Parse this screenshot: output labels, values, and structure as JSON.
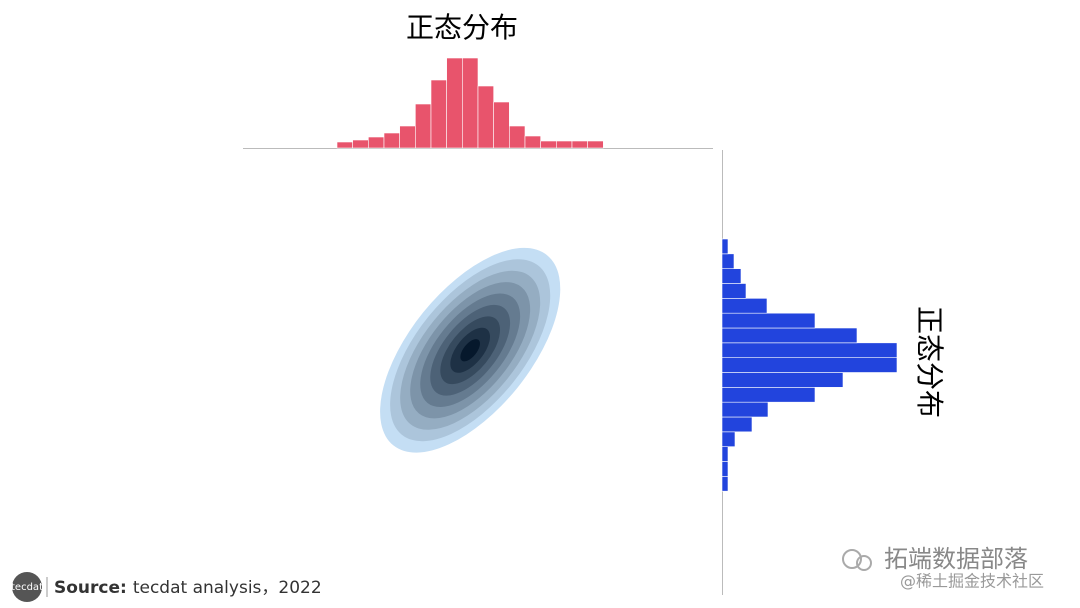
{
  "chart_data": [
    {
      "type": "histogram",
      "title": "正态分布",
      "color": "#e8546c",
      "bins": [
        -1.8,
        -1.6,
        -1.4,
        -1.2,
        -1.0,
        -0.8,
        -0.6,
        -0.4,
        -0.2,
        0.0,
        0.2,
        0.4,
        0.6,
        0.8,
        1.0,
        1.2,
        1.4,
        1.6
      ],
      "counts": [
        6,
        8,
        11,
        15,
        22,
        44,
        68,
        90,
        90,
        62,
        46,
        22,
        12,
        7,
        7,
        7,
        7
      ],
      "xlim": [
        -3,
        3
      ],
      "ylim": [
        0,
        100
      ]
    },
    {
      "type": "histogram",
      "orientation": "horizontal",
      "label": "正态分布",
      "color": "#2244dd",
      "bins": [
        -1.6,
        -1.4,
        -1.2,
        -1.0,
        -0.8,
        -0.6,
        -0.4,
        -0.2,
        0.0,
        0.2,
        0.4,
        0.6,
        0.8,
        1.0,
        1.2,
        1.4,
        1.6,
        1.8
      ],
      "counts": [
        6,
        6,
        6,
        13,
        30,
        46,
        93,
        121,
        175,
        175,
        135,
        93,
        45,
        24,
        19,
        12,
        6
      ],
      "ylim": [
        -3,
        3
      ],
      "xlim": [
        0,
        200
      ]
    },
    {
      "type": "kde",
      "center": [
        -0.1,
        0.3
      ],
      "sd": [
        0.5,
        0.6
      ],
      "corr": 0.6,
      "levels": 9,
      "colors": [
        "#c4def4",
        "#06182c"
      ],
      "xlim": [
        -3,
        3
      ],
      "ylim": [
        -3,
        3
      ]
    }
  ],
  "footer": {
    "logo": "tecdat",
    "source_label": "Source:",
    "source_text": "tecdat analysis，2022"
  },
  "watermark": {
    "brand": "拓端数据部落",
    "site": "@稀土掘金技术社区"
  }
}
